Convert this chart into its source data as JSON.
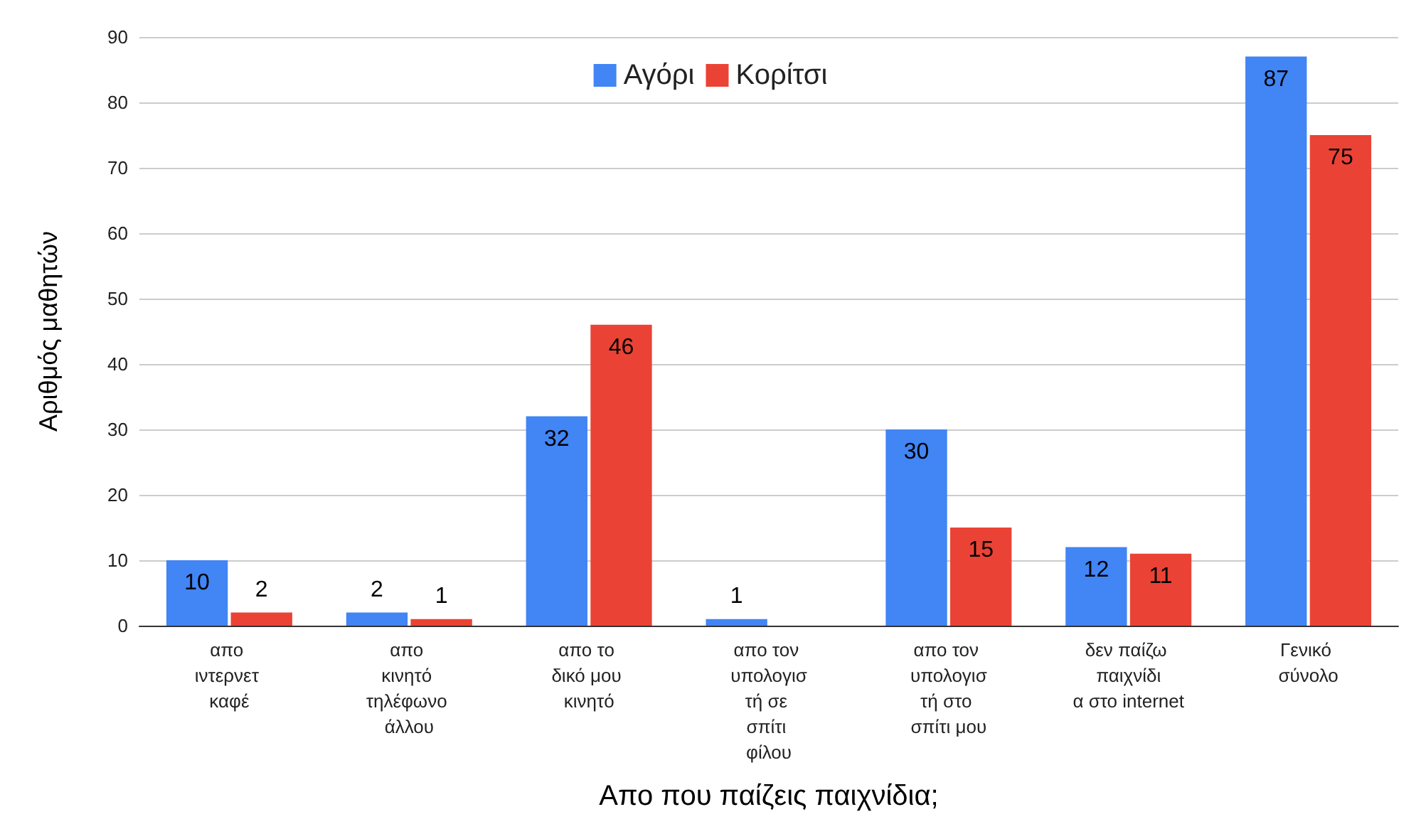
{
  "chart_data": {
    "type": "bar",
    "xlabel": "Απο που παίζεις παιχνίδια;",
    "ylabel": "Αριθμός μαθητών",
    "categories": [
      "απο ιντερνετ καφέ",
      "απο κινητό τηλέφωνο άλλου",
      "απο το δικό μου κινητό",
      "απο τον υπολογιστή σε σπίτι φίλου",
      "απο τον υπολογιστή στο σπίτι μου",
      "δεν παίζω παιχνίδια στο internet",
      "Γενικό σύνολο"
    ],
    "series": [
      {
        "name": "Αγόρι",
        "color": "#4285f4",
        "values": [
          10,
          2,
          32,
          1,
          30,
          12,
          87
        ]
      },
      {
        "name": "Κορίτσι",
        "color": "#ea4335",
        "values": [
          2,
          1,
          46,
          null,
          15,
          11,
          75
        ]
      }
    ],
    "ylim": [
      0,
      90
    ],
    "yticks": [
      0,
      10,
      20,
      30,
      40,
      50,
      60,
      70,
      80,
      90
    ],
    "grid": "y",
    "legend": "top",
    "data_labels": true
  }
}
